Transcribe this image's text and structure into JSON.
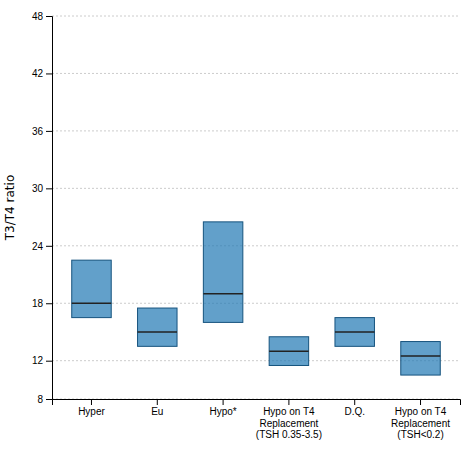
{
  "chart_data": {
    "type": "box",
    "categories": [
      "Hyper",
      "Eu",
      "Hypo*",
      "Hypo on T4\nReplacement\n(TSH 0.35-3.5)",
      "D.Q.",
      "Hypo on T4\nReplacement\n(TSH<0.2)"
    ],
    "boxes": [
      {
        "q1": 16.5,
        "median": 18.0,
        "q3": 22.5
      },
      {
        "q1": 13.5,
        "median": 15.0,
        "q3": 17.5
      },
      {
        "q1": 16.0,
        "median": 19.0,
        "q3": 26.5
      },
      {
        "q1": 11.5,
        "median": 13.0,
        "q3": 14.5
      },
      {
        "q1": 13.5,
        "median": 15.0,
        "q3": 16.5
      },
      {
        "q1": 10.5,
        "median": 12.5,
        "q3": 14.0
      }
    ],
    "ylabel": "T3/T4 ratio",
    "ylim": [
      8,
      48
    ],
    "yticks": [
      8,
      12,
      18,
      24,
      30,
      36,
      42,
      48
    ],
    "grid": true
  }
}
